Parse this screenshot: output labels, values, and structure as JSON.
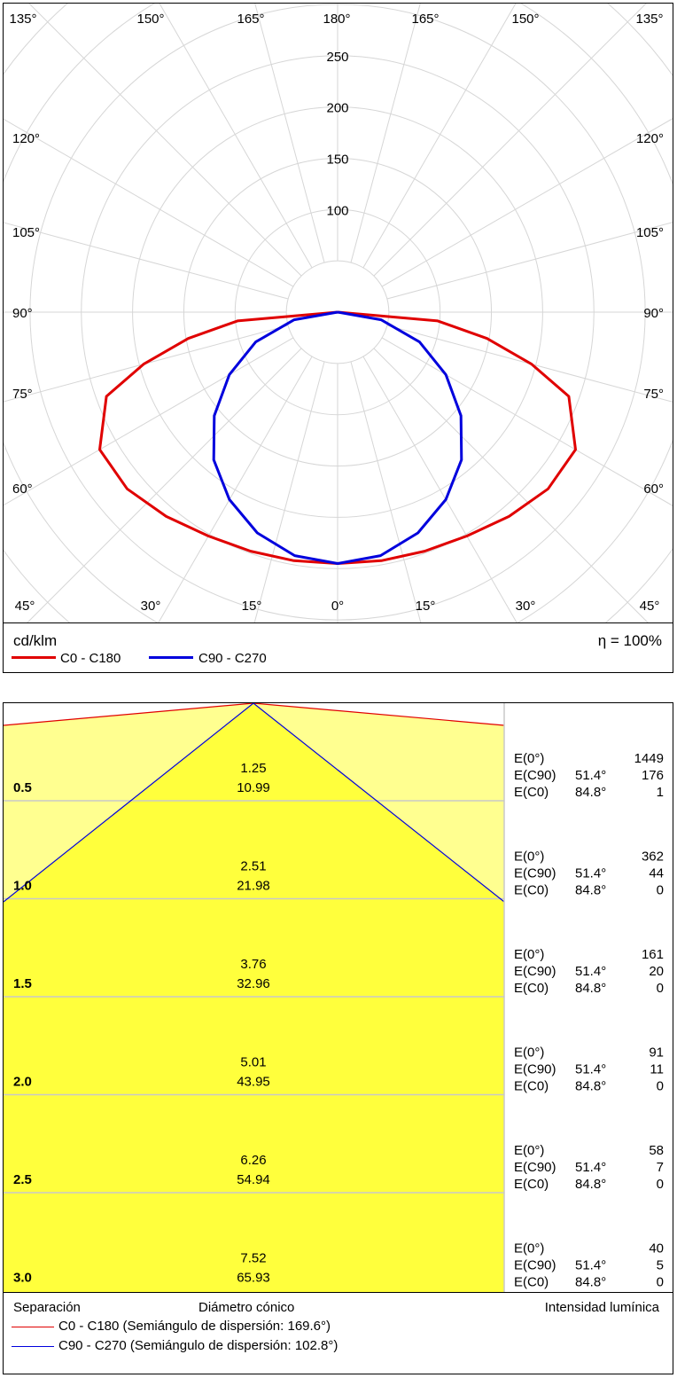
{
  "chart_data": [
    {
      "type": "polar",
      "unit_label": "cd/klm",
      "efficiency_label": "η = 100%",
      "radial_ticks": [
        100,
        150,
        200,
        250
      ],
      "rlim": [
        0,
        300
      ],
      "angle_labels_top": [
        "135°",
        "150°",
        "165°",
        "180°",
        "165°",
        "150°",
        "135°"
      ],
      "angle_labels_left": [
        "120°",
        "105°",
        "90°",
        "75°",
        "60°"
      ],
      "angle_labels_right": [
        "120°",
        "105°",
        "90°",
        "75°",
        "60°"
      ],
      "angle_labels_bottom": [
        "45°",
        "30°",
        "15°",
        "0°",
        "15°",
        "30°",
        "45°"
      ],
      "grid": true,
      "series": [
        {
          "name": "C0 - C180",
          "color": "#e00000",
          "symmetric": true,
          "gamma": [
            0,
            10,
            20,
            30,
            40,
            50,
            60,
            70,
            75,
            80,
            85,
            90
          ],
          "values": [
            245,
            246,
            248,
            252,
            260,
            268,
            268,
            240,
            196,
            148,
            98,
            0
          ]
        },
        {
          "name": "C90 - C270",
          "color": "#0000dd",
          "symmetric": true,
          "gamma": [
            0,
            10,
            20,
            30,
            40,
            50,
            60,
            70,
            80,
            90
          ],
          "values": [
            245,
            241,
            229,
            211,
            188,
            157,
            122,
            85,
            43,
            0
          ]
        }
      ]
    },
    {
      "type": "table",
      "fill_color": "#ffff3c",
      "light_fill_color": "#ffff90",
      "legend_header": {
        "separation": "Separación",
        "diameter": "Diámetro cónico",
        "intensity": "Intensidad lumínica"
      },
      "legend_lines": [
        {
          "label": "C0 - C180 (Semiángulo de dispersión: 169.6°)",
          "color": "#e00000"
        },
        {
          "label": "C90 - C270 (Semiángulo de dispersión: 102.8°)",
          "color": "#0000dd"
        }
      ],
      "rows": [
        {
          "height": "0.5",
          "d1": "1.25",
          "d2": "10.99",
          "e0": "1449",
          "ec90": "176",
          "ec0": "1"
        },
        {
          "height": "1.0",
          "d1": "2.51",
          "d2": "21.98",
          "e0": "362",
          "ec90": "44",
          "ec0": "0"
        },
        {
          "height": "1.5",
          "d1": "3.76",
          "d2": "32.96",
          "e0": "161",
          "ec90": "20",
          "ec0": "0"
        },
        {
          "height": "2.0",
          "d1": "5.01",
          "d2": "43.95",
          "e0": "91",
          "ec90": "11",
          "ec0": "0"
        },
        {
          "height": "2.5",
          "d1": "6.26",
          "d2": "54.94",
          "e0": "58",
          "ec90": "7",
          "ec0": "0"
        },
        {
          "height": "3.0",
          "d1": "7.52",
          "d2": "65.93",
          "e0": "40",
          "ec90": "5",
          "ec0": "0"
        }
      ],
      "labels": {
        "e0": "E(0°)",
        "ec90": "E(C90)",
        "ec0": "E(C0)",
        "angle_c90": "51.4°",
        "angle_c0": "84.8°"
      }
    }
  ]
}
